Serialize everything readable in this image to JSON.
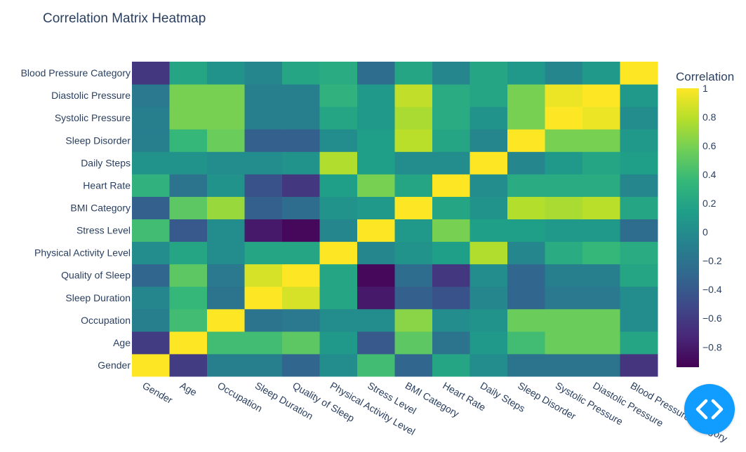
{
  "chart_data": {
    "type": "heatmap",
    "title": "Correlation Matrix Heatmap",
    "colorbar_title": "Correlation",
    "colorscale": "viridis",
    "zlim": [
      -0.94,
      1
    ],
    "colorbar_ticks": [
      1,
      0.8,
      0.6,
      0.4,
      0.2,
      0,
      -0.2,
      -0.4,
      -0.6,
      -0.8
    ],
    "colorbar_tick_labels": [
      "1",
      "0.8",
      "0.6",
      "0.4",
      "0.2",
      "0",
      "−0.2",
      "−0.4",
      "−0.6",
      "−0.8"
    ],
    "x_labels": [
      "Gender",
      "Age",
      "Occupation",
      "Sleep Duration",
      "Quality of Sleep",
      "Physical Activity Level",
      "Stress Level",
      "BMI Category",
      "Heart Rate",
      "Daily Steps",
      "Sleep Disorder",
      "Systolic Pressure",
      "Diastolic Pressure",
      "Blood Pressure Category"
    ],
    "y_labels": [
      "Gender",
      "Age",
      "Occupation",
      "Sleep Duration",
      "Quality of Sleep",
      "Physical Activity Level",
      "Stress Level",
      "BMI Category",
      "Heart Rate",
      "Daily Steps",
      "Sleep Disorder",
      "Systolic Pressure",
      "Diastolic Pressure",
      "Blood Pressure Category"
    ],
    "z": [
      [
        1.0,
        -0.6,
        -0.1,
        -0.1,
        -0.3,
        0.0,
        0.4,
        -0.3,
        0.2,
        0.0,
        -0.2,
        -0.2,
        -0.2,
        -0.65
      ],
      [
        -0.6,
        1.0,
        0.4,
        0.4,
        0.5,
        0.1,
        -0.4,
        0.5,
        -0.2,
        0.1,
        0.4,
        0.55,
        0.55,
        0.2
      ],
      [
        -0.1,
        0.4,
        1.0,
        -0.2,
        -0.15,
        0.0,
        0.0,
        0.65,
        0.0,
        0.05,
        0.55,
        0.55,
        0.55,
        0.0
      ],
      [
        -0.05,
        0.35,
        -0.2,
        1.0,
        0.88,
        0.2,
        -0.81,
        -0.35,
        -0.45,
        -0.05,
        -0.3,
        -0.15,
        -0.15,
        0.0
      ],
      [
        -0.3,
        0.5,
        -0.15,
        0.88,
        1.0,
        0.2,
        -0.9,
        -0.25,
        -0.62,
        0.0,
        -0.3,
        -0.1,
        -0.1,
        0.2
      ],
      [
        0.0,
        0.2,
        0.0,
        0.2,
        0.2,
        1.0,
        -0.05,
        0.05,
        0.15,
        0.77,
        -0.05,
        0.25,
        0.35,
        0.25
      ],
      [
        0.4,
        -0.4,
        0.0,
        -0.81,
        -0.9,
        -0.05,
        1.0,
        0.1,
        0.6,
        0.15,
        0.15,
        0.1,
        0.1,
        -0.25
      ],
      [
        -0.35,
        0.5,
        0.7,
        -0.35,
        -0.25,
        0.05,
        0.1,
        1.0,
        0.2,
        0.05,
        0.78,
        0.75,
        0.8,
        0.2
      ],
      [
        0.3,
        -0.2,
        0.05,
        -0.45,
        -0.62,
        0.15,
        0.6,
        0.2,
        1.0,
        0.0,
        0.25,
        0.25,
        0.25,
        -0.05
      ],
      [
        0.05,
        0.05,
        0.0,
        0.0,
        0.05,
        0.77,
        0.15,
        0.0,
        0.0,
        1.0,
        -0.05,
        0.1,
        0.2,
        0.15
      ],
      [
        -0.1,
        0.35,
        0.55,
        -0.35,
        -0.35,
        0.0,
        0.15,
        0.8,
        0.2,
        -0.05,
        1.0,
        0.6,
        0.6,
        0.1
      ],
      [
        -0.1,
        0.6,
        0.6,
        -0.1,
        -0.1,
        0.2,
        0.1,
        0.75,
        0.25,
        0.05,
        0.6,
        1.0,
        0.95,
        0.0
      ],
      [
        -0.15,
        0.6,
        0.6,
        -0.1,
        -0.1,
        0.3,
        0.1,
        0.82,
        0.25,
        0.2,
        0.6,
        0.95,
        1.0,
        0.1
      ],
      [
        -0.62,
        0.2,
        0.05,
        -0.05,
        0.2,
        0.25,
        -0.25,
        0.2,
        -0.05,
        0.2,
        0.1,
        -0.05,
        0.1,
        1.0
      ]
    ]
  },
  "colors": {
    "text": "#2a3f5f",
    "embed_button": "#119dff"
  },
  "embed_button_icon": "code-icon"
}
